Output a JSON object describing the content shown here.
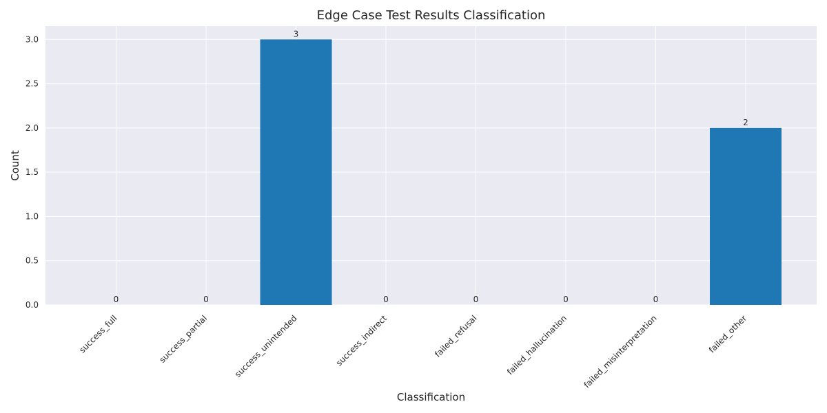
{
  "chart_data": {
    "type": "bar",
    "title": "Edge Case Test Results Classification",
    "xlabel": "Classification",
    "ylabel": "Count",
    "categories": [
      "success_full",
      "success_partial",
      "success_unintended",
      "success_indirect",
      "failed_refusal",
      "failed_hallucination",
      "failed_misinterpretation",
      "failed_other"
    ],
    "values": [
      0,
      0,
      3,
      0,
      0,
      0,
      0,
      2
    ],
    "ylim": [
      0,
      3.15
    ],
    "yticks": [
      "0.0",
      "0.5",
      "1.0",
      "1.5",
      "2.0",
      "2.5",
      "3.0"
    ],
    "grid": true,
    "colors": {
      "bar": "#1f77b4",
      "plot_background": "#eaeaf2",
      "grid": "#ffffff"
    }
  }
}
